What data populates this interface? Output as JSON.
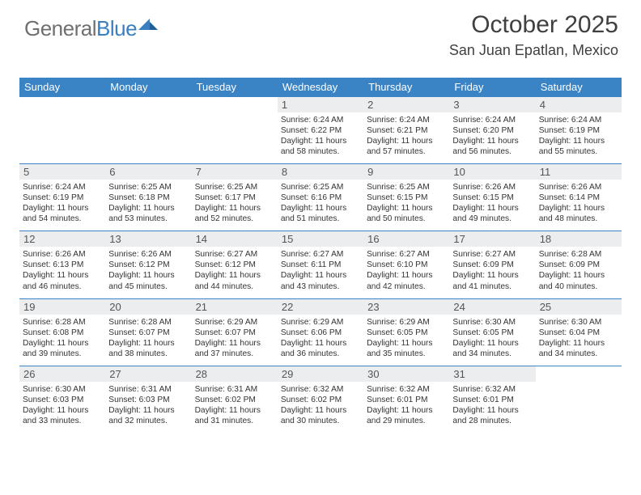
{
  "brand": {
    "part1": "General",
    "part2": "Blue"
  },
  "title": "October 2025",
  "location": "San Juan Epatlan, Mexico",
  "day_headers": [
    "Sunday",
    "Monday",
    "Tuesday",
    "Wednesday",
    "Thursday",
    "Friday",
    "Saturday"
  ],
  "colors": {
    "header_bg": "#3a83c4",
    "header_text": "#ffffff",
    "rule": "#3a83c4",
    "daybar_bg": "#ecedee",
    "text": "#333333",
    "logo_gray": "#6f6f6f",
    "logo_blue": "#3a7fc0"
  },
  "weeks": [
    [
      {
        "n": "",
        "lines": []
      },
      {
        "n": "",
        "lines": []
      },
      {
        "n": "",
        "lines": []
      },
      {
        "n": "1",
        "lines": [
          "Sunrise: 6:24 AM",
          "Sunset: 6:22 PM",
          "Daylight: 11 hours and 58 minutes."
        ]
      },
      {
        "n": "2",
        "lines": [
          "Sunrise: 6:24 AM",
          "Sunset: 6:21 PM",
          "Daylight: 11 hours and 57 minutes."
        ]
      },
      {
        "n": "3",
        "lines": [
          "Sunrise: 6:24 AM",
          "Sunset: 6:20 PM",
          "Daylight: 11 hours and 56 minutes."
        ]
      },
      {
        "n": "4",
        "lines": [
          "Sunrise: 6:24 AM",
          "Sunset: 6:19 PM",
          "Daylight: 11 hours and 55 minutes."
        ]
      }
    ],
    [
      {
        "n": "5",
        "lines": [
          "Sunrise: 6:24 AM",
          "Sunset: 6:19 PM",
          "Daylight: 11 hours and 54 minutes."
        ]
      },
      {
        "n": "6",
        "lines": [
          "Sunrise: 6:25 AM",
          "Sunset: 6:18 PM",
          "Daylight: 11 hours and 53 minutes."
        ]
      },
      {
        "n": "7",
        "lines": [
          "Sunrise: 6:25 AM",
          "Sunset: 6:17 PM",
          "Daylight: 11 hours and 52 minutes."
        ]
      },
      {
        "n": "8",
        "lines": [
          "Sunrise: 6:25 AM",
          "Sunset: 6:16 PM",
          "Daylight: 11 hours and 51 minutes."
        ]
      },
      {
        "n": "9",
        "lines": [
          "Sunrise: 6:25 AM",
          "Sunset: 6:15 PM",
          "Daylight: 11 hours and 50 minutes."
        ]
      },
      {
        "n": "10",
        "lines": [
          "Sunrise: 6:26 AM",
          "Sunset: 6:15 PM",
          "Daylight: 11 hours and 49 minutes."
        ]
      },
      {
        "n": "11",
        "lines": [
          "Sunrise: 6:26 AM",
          "Sunset: 6:14 PM",
          "Daylight: 11 hours and 48 minutes."
        ]
      }
    ],
    [
      {
        "n": "12",
        "lines": [
          "Sunrise: 6:26 AM",
          "Sunset: 6:13 PM",
          "Daylight: 11 hours and 46 minutes."
        ]
      },
      {
        "n": "13",
        "lines": [
          "Sunrise: 6:26 AM",
          "Sunset: 6:12 PM",
          "Daylight: 11 hours and 45 minutes."
        ]
      },
      {
        "n": "14",
        "lines": [
          "Sunrise: 6:27 AM",
          "Sunset: 6:12 PM",
          "Daylight: 11 hours and 44 minutes."
        ]
      },
      {
        "n": "15",
        "lines": [
          "Sunrise: 6:27 AM",
          "Sunset: 6:11 PM",
          "Daylight: 11 hours and 43 minutes."
        ]
      },
      {
        "n": "16",
        "lines": [
          "Sunrise: 6:27 AM",
          "Sunset: 6:10 PM",
          "Daylight: 11 hours and 42 minutes."
        ]
      },
      {
        "n": "17",
        "lines": [
          "Sunrise: 6:27 AM",
          "Sunset: 6:09 PM",
          "Daylight: 11 hours and 41 minutes."
        ]
      },
      {
        "n": "18",
        "lines": [
          "Sunrise: 6:28 AM",
          "Sunset: 6:09 PM",
          "Daylight: 11 hours and 40 minutes."
        ]
      }
    ],
    [
      {
        "n": "19",
        "lines": [
          "Sunrise: 6:28 AM",
          "Sunset: 6:08 PM",
          "Daylight: 11 hours and 39 minutes."
        ]
      },
      {
        "n": "20",
        "lines": [
          "Sunrise: 6:28 AM",
          "Sunset: 6:07 PM",
          "Daylight: 11 hours and 38 minutes."
        ]
      },
      {
        "n": "21",
        "lines": [
          "Sunrise: 6:29 AM",
          "Sunset: 6:07 PM",
          "Daylight: 11 hours and 37 minutes."
        ]
      },
      {
        "n": "22",
        "lines": [
          "Sunrise: 6:29 AM",
          "Sunset: 6:06 PM",
          "Daylight: 11 hours and 36 minutes."
        ]
      },
      {
        "n": "23",
        "lines": [
          "Sunrise: 6:29 AM",
          "Sunset: 6:05 PM",
          "Daylight: 11 hours and 35 minutes."
        ]
      },
      {
        "n": "24",
        "lines": [
          "Sunrise: 6:30 AM",
          "Sunset: 6:05 PM",
          "Daylight: 11 hours and 34 minutes."
        ]
      },
      {
        "n": "25",
        "lines": [
          "Sunrise: 6:30 AM",
          "Sunset: 6:04 PM",
          "Daylight: 11 hours and 34 minutes."
        ]
      }
    ],
    [
      {
        "n": "26",
        "lines": [
          "Sunrise: 6:30 AM",
          "Sunset: 6:03 PM",
          "Daylight: 11 hours and 33 minutes."
        ]
      },
      {
        "n": "27",
        "lines": [
          "Sunrise: 6:31 AM",
          "Sunset: 6:03 PM",
          "Daylight: 11 hours and 32 minutes."
        ]
      },
      {
        "n": "28",
        "lines": [
          "Sunrise: 6:31 AM",
          "Sunset: 6:02 PM",
          "Daylight: 11 hours and 31 minutes."
        ]
      },
      {
        "n": "29",
        "lines": [
          "Sunrise: 6:32 AM",
          "Sunset: 6:02 PM",
          "Daylight: 11 hours and 30 minutes."
        ]
      },
      {
        "n": "30",
        "lines": [
          "Sunrise: 6:32 AM",
          "Sunset: 6:01 PM",
          "Daylight: 11 hours and 29 minutes."
        ]
      },
      {
        "n": "31",
        "lines": [
          "Sunrise: 6:32 AM",
          "Sunset: 6:01 PM",
          "Daylight: 11 hours and 28 minutes."
        ]
      },
      {
        "n": "",
        "lines": []
      }
    ]
  ]
}
